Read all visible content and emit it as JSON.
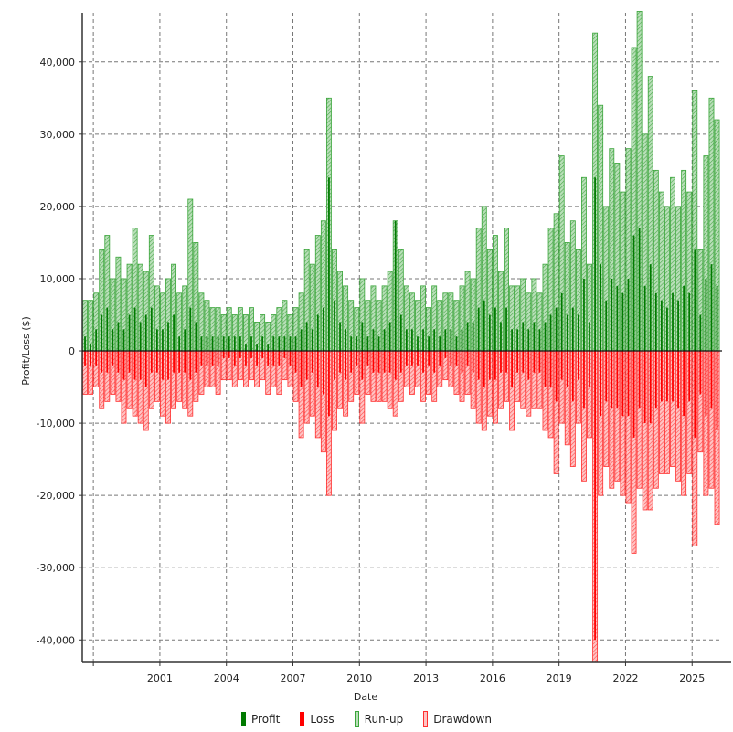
{
  "chart_data": {
    "type": "bar",
    "xlabel": "Date",
    "ylabel": "Profit/Loss ($)",
    "x_start": "1997-07",
    "interval": "quarter",
    "xlim": [
      1997.5,
      2026.35
    ],
    "ylim": [
      -43000,
      46800
    ],
    "x_ticks": [
      "2001",
      "2004",
      "2007",
      "2010",
      "2013",
      "2016",
      "2019",
      "2022",
      "2025"
    ],
    "y_ticks": [
      -40000,
      -30000,
      -20000,
      -10000,
      0,
      10000,
      20000,
      30000,
      40000
    ],
    "y_tick_labels": [
      "-40,000",
      "-30,000",
      "-20,000",
      "-10,000",
      "0",
      "10,000",
      "20,000",
      "30,000",
      "40,000"
    ],
    "grid": true,
    "legend_position": "bottom",
    "colors": {
      "profit": "#007a00",
      "loss": "#ff0000",
      "runup": "#3aa53a",
      "drawdown": "#ff3030"
    },
    "series": [
      {
        "name": "Run-up",
        "values": [
          7000,
          7000,
          8000,
          14000,
          16000,
          10000,
          13000,
          10000,
          12000,
          17000,
          12000,
          11000,
          16000,
          9000,
          8000,
          10000,
          12000,
          8000,
          9000,
          21000,
          15000,
          8000,
          7000,
          6000,
          6000,
          5000,
          6000,
          5000,
          6000,
          5000,
          6000,
          4000,
          5000,
          4000,
          5000,
          6000,
          7000,
          5000,
          6000,
          8000,
          14000,
          12000,
          16000,
          18000,
          35000,
          14000,
          11000,
          9000,
          7000,
          6000,
          10000,
          7000,
          9000,
          7000,
          9000,
          11000,
          18000,
          14000,
          9000,
          8000,
          7000,
          9000,
          6000,
          9000,
          7000,
          8000,
          8000,
          7000,
          9000,
          11000,
          10000,
          17000,
          20000,
          14000,
          16000,
          11000,
          17000,
          9000,
          9000,
          10000,
          8000,
          10000,
          8000,
          12000,
          17000,
          19000,
          27000,
          15000,
          18000,
          14000,
          24000,
          12000,
          44000,
          34000,
          20000,
          28000,
          26000,
          22000,
          28000,
          42000,
          47000,
          30000,
          38000,
          25000,
          22000,
          20000,
          24000,
          20000,
          25000,
          22000,
          36000,
          14000,
          27000,
          35000,
          32000
        ]
      },
      {
        "name": "Profit",
        "values": [
          2000,
          1000,
          3000,
          5000,
          6000,
          3000,
          4000,
          3000,
          5000,
          6000,
          4000,
          5000,
          6000,
          3000,
          3000,
          4000,
          5000,
          2000,
          3000,
          6000,
          4000,
          2000,
          2000,
          2000,
          2000,
          2000,
          2000,
          2000,
          2000,
          1000,
          2000,
          1000,
          2000,
          1000,
          2000,
          2000,
          2000,
          2000,
          2000,
          3000,
          4000,
          3000,
          5000,
          6000,
          24000,
          7000,
          4000,
          3000,
          2000,
          2000,
          4000,
          2000,
          3000,
          2000,
          3000,
          4000,
          18000,
          5000,
          3000,
          3000,
          2000,
          3000,
          2000,
          3000,
          2000,
          3000,
          3000,
          2000,
          3000,
          4000,
          4000,
          6000,
          7000,
          5000,
          6000,
          4000,
          6000,
          3000,
          3000,
          4000,
          3000,
          4000,
          3000,
          4000,
          5000,
          6000,
          8000,
          5000,
          6000,
          5000,
          10000,
          4000,
          24000,
          12000,
          7000,
          10000,
          9000,
          8000,
          10000,
          16000,
          17000,
          9000,
          12000,
          8000,
          7000,
          6000,
          8000,
          7000,
          9000,
          8000,
          14000,
          5000,
          10000,
          12000,
          9000
        ]
      },
      {
        "name": "Drawdown",
        "values": [
          -6000,
          -6000,
          -5000,
          -8000,
          -7000,
          -6000,
          -7000,
          -10000,
          -8000,
          -9000,
          -10000,
          -11000,
          -8000,
          -7000,
          -9000,
          -10000,
          -8000,
          -7000,
          -8000,
          -9000,
          -7000,
          -6000,
          -5000,
          -5000,
          -6000,
          -4000,
          -4000,
          -5000,
          -4000,
          -5000,
          -4000,
          -5000,
          -4000,
          -6000,
          -5000,
          -6000,
          -4000,
          -5000,
          -7000,
          -12000,
          -10000,
          -9000,
          -12000,
          -14000,
          -20000,
          -11000,
          -8000,
          -9000,
          -7000,
          -6000,
          -10000,
          -6000,
          -7000,
          -7000,
          -7000,
          -8000,
          -9000,
          -7000,
          -5000,
          -6000,
          -5000,
          -7000,
          -6000,
          -7000,
          -5000,
          -4000,
          -5000,
          -6000,
          -7000,
          -6000,
          -8000,
          -10000,
          -11000,
          -9000,
          -10000,
          -8000,
          -7000,
          -11000,
          -7000,
          -8000,
          -9000,
          -8000,
          -8000,
          -11000,
          -12000,
          -17000,
          -10000,
          -13000,
          -16000,
          -10000,
          -18000,
          -12000,
          -43000,
          -20000,
          -16000,
          -19000,
          -18000,
          -20000,
          -21000,
          -28000,
          -19000,
          -22000,
          -22000,
          -19000,
          -17000,
          -17000,
          -16000,
          -18000,
          -20000,
          -17000,
          -27000,
          -14000,
          -20000,
          -19000,
          -24000
        ]
      },
      {
        "name": "Loss",
        "values": [
          -2000,
          -2000,
          -2000,
          -3000,
          -3000,
          -2000,
          -3000,
          -4000,
          -3000,
          -4000,
          -4000,
          -5000,
          -3000,
          -3000,
          -4000,
          -4000,
          -3000,
          -3000,
          -3000,
          -4000,
          -3000,
          -2000,
          -2000,
          -2000,
          -2000,
          -1000,
          -1000,
          -2000,
          -1000,
          -2000,
          -1000,
          -2000,
          -1000,
          -2000,
          -2000,
          -2000,
          -1000,
          -2000,
          -3000,
          -5000,
          -4000,
          -3000,
          -5000,
          -6000,
          -9000,
          -4000,
          -3000,
          -4000,
          -3000,
          -2000,
          -4000,
          -2000,
          -3000,
          -3000,
          -3000,
          -3000,
          -4000,
          -3000,
          -2000,
          -2000,
          -2000,
          -3000,
          -2000,
          -3000,
          -2000,
          -1000,
          -2000,
          -2000,
          -3000,
          -2000,
          -3000,
          -4000,
          -5000,
          -4000,
          -4000,
          -3000,
          -3000,
          -5000,
          -3000,
          -3000,
          -4000,
          -3000,
          -3000,
          -5000,
          -5000,
          -7000,
          -4000,
          -5000,
          -7000,
          -4000,
          -8000,
          -5000,
          -40000,
          -9000,
          -7000,
          -8000,
          -8000,
          -9000,
          -9000,
          -12000,
          -8000,
          -10000,
          -10000,
          -8000,
          -7000,
          -7000,
          -7000,
          -8000,
          -9000,
          -7000,
          -12000,
          -6000,
          -9000,
          -8000,
          -11000
        ]
      }
    ]
  },
  "legend": {
    "items": [
      {
        "label": "Profit",
        "icon": "solid-swatch"
      },
      {
        "label": "Loss",
        "icon": "solid-swatch"
      },
      {
        "label": "Run-up",
        "icon": "hatched-swatch"
      },
      {
        "label": "Drawdown",
        "icon": "hatched-swatch"
      }
    ]
  }
}
